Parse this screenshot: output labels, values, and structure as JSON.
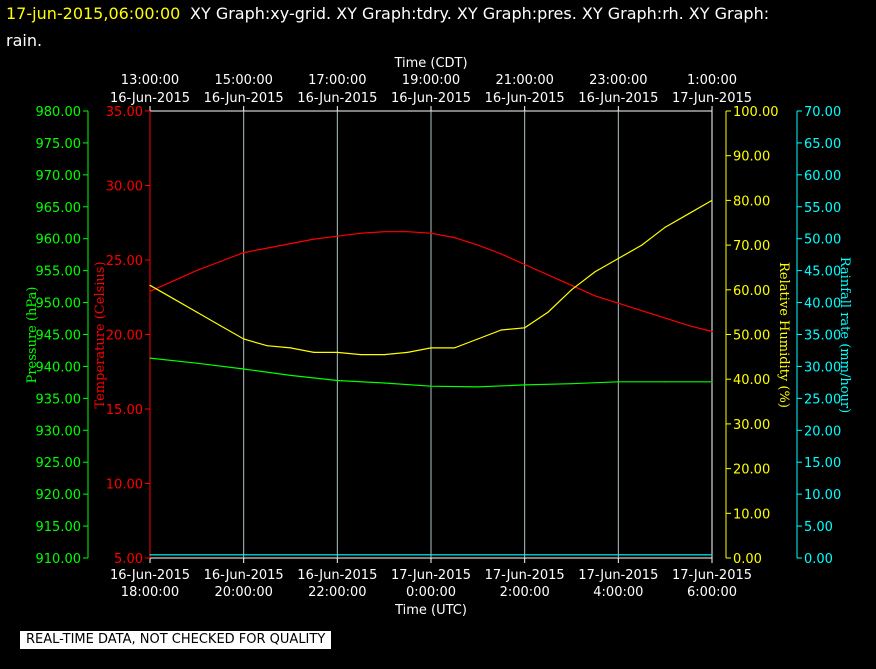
{
  "header": {
    "timestamp": "17-jun-2015,06:00:00",
    "graphs_line1": "XY Graph:xy-grid.  XY Graph:tdry.  XY Graph:pres.  XY Graph:rh.  XY Graph:",
    "graphs_line2": "rain."
  },
  "notice": "REAL-TIME DATA, NOT CHECKED FOR QUALITY",
  "colors": {
    "background": "#000000",
    "header_timestamp": "#ffff00",
    "temperature": "#ff0000",
    "pressure": "#00ff00",
    "humidity": "#ffff00",
    "rain": "#00ffff",
    "grid": "#b0c4c8"
  },
  "chart_data": {
    "type": "line",
    "top_axis": {
      "label": "Time (CDT)",
      "ticks": [
        {
          "time": "13:00:00",
          "date": "16-Jun-2015"
        },
        {
          "time": "15:00:00",
          "date": "16-Jun-2015"
        },
        {
          "time": "17:00:00",
          "date": "16-Jun-2015"
        },
        {
          "time": "19:00:00",
          "date": "16-Jun-2015"
        },
        {
          "time": "21:00:00",
          "date": "16-Jun-2015"
        },
        {
          "time": "23:00:00",
          "date": "16-Jun-2015"
        },
        {
          "time": "1:00:00",
          "date": "17-Jun-2015"
        }
      ]
    },
    "bottom_axis": {
      "label": "Time (UTC)",
      "ticks": [
        {
          "date": "16-Jun-2015",
          "time": "18:00:00"
        },
        {
          "date": "16-Jun-2015",
          "time": "20:00:00"
        },
        {
          "date": "16-Jun-2015",
          "time": "22:00:00"
        },
        {
          "date": "17-Jun-2015",
          "time": "0:00:00"
        },
        {
          "date": "17-Jun-2015",
          "time": "2:00:00"
        },
        {
          "date": "17-Jun-2015",
          "time": "4:00:00"
        },
        {
          "date": "17-Jun-2015",
          "time": "6:00:00"
        }
      ],
      "xlim": [
        "2015-06-16 18:00 UTC",
        "2015-06-17 06:00 UTC"
      ]
    },
    "axes": {
      "pressure": {
        "label": "Pressure (hPa)",
        "ylim": [
          910,
          980
        ],
        "ticks": [
          "910.00",
          "915.00",
          "920.00",
          "925.00",
          "930.00",
          "935.00",
          "940.00",
          "945.00",
          "950.00",
          "955.00",
          "960.00",
          "965.00",
          "970.00",
          "975.00",
          "980.00"
        ]
      },
      "temperature": {
        "label": "Temperature (Celsius)",
        "ylim": [
          5,
          35
        ],
        "ticks": [
          "5.00",
          "10.00",
          "15.00",
          "20.00",
          "25.00",
          "30.00",
          "35.00"
        ]
      },
      "humidity": {
        "label": "Relative Humidity (%)",
        "ylim": [
          0,
          100
        ],
        "ticks": [
          "0.00",
          "10.00",
          "20.00",
          "30.00",
          "40.00",
          "50.00",
          "60.00",
          "70.00",
          "80.00",
          "90.00",
          "100.00"
        ]
      },
      "rain": {
        "label": "Rainfall rate (mm/hour)",
        "ylim": [
          0,
          70
        ],
        "ticks": [
          "0.00",
          "5.00",
          "10.00",
          "15.00",
          "20.00",
          "25.00",
          "30.00",
          "35.00",
          "40.00",
          "45.00",
          "50.00",
          "55.00",
          "60.00",
          "65.00",
          "70.00"
        ]
      }
    },
    "grid": true,
    "series": [
      {
        "axis": "temperature",
        "color": "#ff0000",
        "x": [
          "2015-06-16 18:00",
          "2015-06-16 18:30",
          "2015-06-16 19:00",
          "2015-06-16 19:30",
          "2015-06-16 20:00",
          "2015-06-16 20:30",
          "2015-06-16 21:00",
          "2015-06-16 21:30",
          "2015-06-16 22:00",
          "2015-06-16 22:30",
          "2015-06-16 23:00",
          "2015-06-16 23:30",
          "2015-06-17 00:00",
          "2015-06-17 00:30",
          "2015-06-17 01:00",
          "2015-06-17 01:30",
          "2015-06-17 02:00",
          "2015-06-17 02:30",
          "2015-06-17 03:00",
          "2015-06-17 03:30",
          "2015-06-17 04:00",
          "2015-06-17 04:30",
          "2015-06-17 05:00",
          "2015-06-17 05:30",
          "2015-06-17 06:00"
        ],
        "y": [
          22.9,
          23.6,
          24.3,
          24.9,
          25.5,
          25.8,
          26.1,
          26.4,
          26.6,
          26.8,
          26.9,
          26.9,
          26.8,
          26.5,
          26.0,
          25.4,
          24.7,
          24.0,
          23.3,
          22.6,
          22.1,
          21.6,
          21.1,
          20.6,
          20.2
        ]
      },
      {
        "axis": "pressure",
        "color": "#00ff00",
        "x": [
          "2015-06-16 18:00",
          "2015-06-16 19:00",
          "2015-06-16 20:00",
          "2015-06-16 21:00",
          "2015-06-16 22:00",
          "2015-06-16 23:00",
          "2015-06-17 00:00",
          "2015-06-17 01:00",
          "2015-06-17 02:00",
          "2015-06-17 03:00",
          "2015-06-17 04:00",
          "2015-06-17 05:00",
          "2015-06-17 06:00"
        ],
        "y": [
          941.3,
          940.5,
          939.6,
          938.6,
          937.8,
          937.4,
          936.9,
          936.8,
          937.1,
          937.3,
          937.6,
          937.6,
          937.6
        ]
      },
      {
        "axis": "humidity",
        "color": "#ffff00",
        "x": [
          "2015-06-16 18:00",
          "2015-06-16 18:30",
          "2015-06-16 19:00",
          "2015-06-16 19:30",
          "2015-06-16 20:00",
          "2015-06-16 20:30",
          "2015-06-16 21:00",
          "2015-06-16 21:30",
          "2015-06-16 22:00",
          "2015-06-16 22:30",
          "2015-06-16 23:00",
          "2015-06-16 23:30",
          "2015-06-17 00:00",
          "2015-06-17 00:30",
          "2015-06-17 01:00",
          "2015-06-17 01:30",
          "2015-06-17 02:00",
          "2015-06-17 02:30",
          "2015-06-17 03:00",
          "2015-06-17 03:30",
          "2015-06-17 04:00",
          "2015-06-17 04:30",
          "2015-06-17 05:00",
          "2015-06-17 05:30",
          "2015-06-17 06:00"
        ],
        "y": [
          61,
          58,
          55,
          52,
          49,
          47.5,
          47,
          46,
          46,
          45.5,
          45.5,
          46,
          47,
          47,
          49,
          51,
          51.5,
          55,
          60,
          64,
          67,
          70,
          74,
          77,
          80
        ]
      },
      {
        "axis": "rain",
        "color": "#00ffff",
        "x": [
          "2015-06-16 18:00",
          "2015-06-17 06:00"
        ],
        "y": [
          0.5,
          0.5
        ]
      }
    ]
  }
}
